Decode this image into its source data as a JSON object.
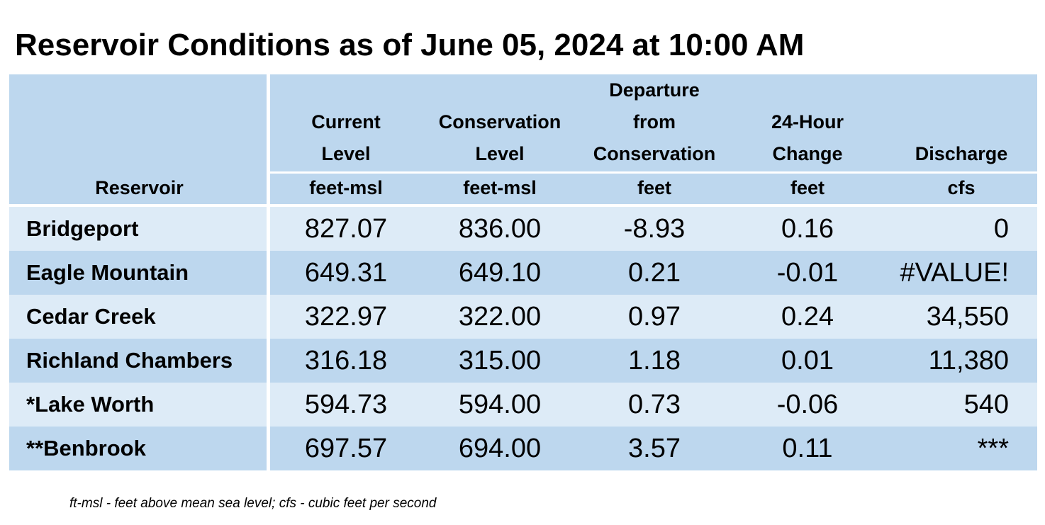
{
  "title": "Reservoir Conditions as of June 05, 2024 at 10:00 AM",
  "table": {
    "columns": [
      {
        "label_lines": [
          "",
          "",
          "",
          "Reservoir"
        ],
        "unit": ""
      },
      {
        "label_lines": [
          "",
          "Current",
          "Level"
        ],
        "unit": "feet-msl"
      },
      {
        "label_lines": [
          "",
          "Conservation",
          "Level"
        ],
        "unit": "feet-msl"
      },
      {
        "label_lines": [
          "Departure",
          "from",
          "Conservation"
        ],
        "unit": "feet"
      },
      {
        "label_lines": [
          "",
          "24-Hour",
          "Change"
        ],
        "unit": "feet"
      },
      {
        "label_lines": [
          "",
          "",
          "Discharge"
        ],
        "unit": "cfs"
      }
    ],
    "rows": [
      {
        "reservoir": "Bridgeport",
        "current_level": "827.07",
        "conservation_level": "836.00",
        "departure": "-8.93",
        "change_24h": "0.16",
        "discharge": "0"
      },
      {
        "reservoir": "Eagle Mountain",
        "current_level": "649.31",
        "conservation_level": "649.10",
        "departure": "0.21",
        "change_24h": "-0.01",
        "discharge": "#VALUE!"
      },
      {
        "reservoir": "Cedar Creek",
        "current_level": "322.97",
        "conservation_level": "322.00",
        "departure": "0.97",
        "change_24h": "0.24",
        "discharge": "34,550"
      },
      {
        "reservoir": "Richland Chambers",
        "current_level": "316.18",
        "conservation_level": "315.00",
        "departure": "1.18",
        "change_24h": "0.01",
        "discharge": "11,380"
      },
      {
        "reservoir": "*Lake Worth",
        "current_level": "594.73",
        "conservation_level": "594.00",
        "departure": "0.73",
        "change_24h": "-0.06",
        "discharge": "540"
      },
      {
        "reservoir": "**Benbrook",
        "current_level": "697.57",
        "conservation_level": "694.00",
        "departure": "3.57",
        "change_24h": "0.11",
        "discharge": "***"
      }
    ]
  },
  "footnote": "ft-msl - feet above mean sea level; cfs - cubic feet per second",
  "colors": {
    "header_bg": "#bdd7ee",
    "row_light": "#ddebf7",
    "row_dark": "#bdd7ee",
    "separator": "#ffffff"
  }
}
